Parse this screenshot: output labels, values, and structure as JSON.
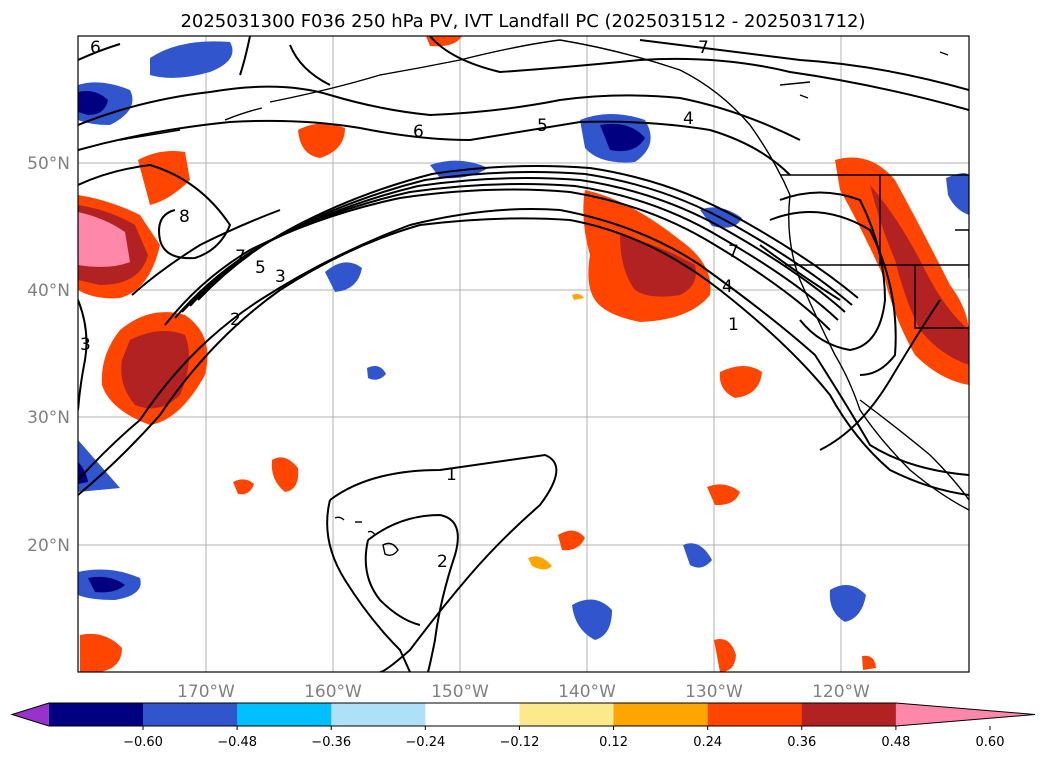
{
  "chart_data": {
    "type": "map-contour",
    "title": "2025031300 F036 250 hPa PV, IVT Landfall PC (2025031512 - 2025031712)",
    "x_ticks": [
      "170°W",
      "160°W",
      "150°W",
      "140°W",
      "130°W",
      "120°W"
    ],
    "y_ticks": [
      "50°N",
      "40°N",
      "30°N",
      "20°N"
    ],
    "lon_range": [
      -180,
      -110
    ],
    "lat_range": [
      10,
      60
    ],
    "colorbar": {
      "ticks": [
        "−0.60",
        "−0.48",
        "−0.36",
        "−0.24",
        "−0.12",
        "0.12",
        "0.24",
        "0.36",
        "0.48",
        "0.60"
      ],
      "levels": [
        -0.6,
        -0.48,
        -0.36,
        -0.24,
        -0.12,
        0.12,
        0.24,
        0.36,
        0.48,
        0.6
      ],
      "colors": [
        "#9932cc",
        "#000080",
        "#3055cc",
        "#00bfff",
        "#aee0f8",
        "#ffffff",
        "#fce98c",
        "#ffa500",
        "#ff4500",
        "#b22222",
        "#ff88aa"
      ],
      "extend": "both"
    },
    "contour_labels": [
      "6",
      "7",
      "6",
      "5",
      "4",
      "8",
      "7",
      "5",
      "3",
      "2",
      "3",
      "7",
      "4",
      "1",
      "1",
      "2"
    ]
  }
}
